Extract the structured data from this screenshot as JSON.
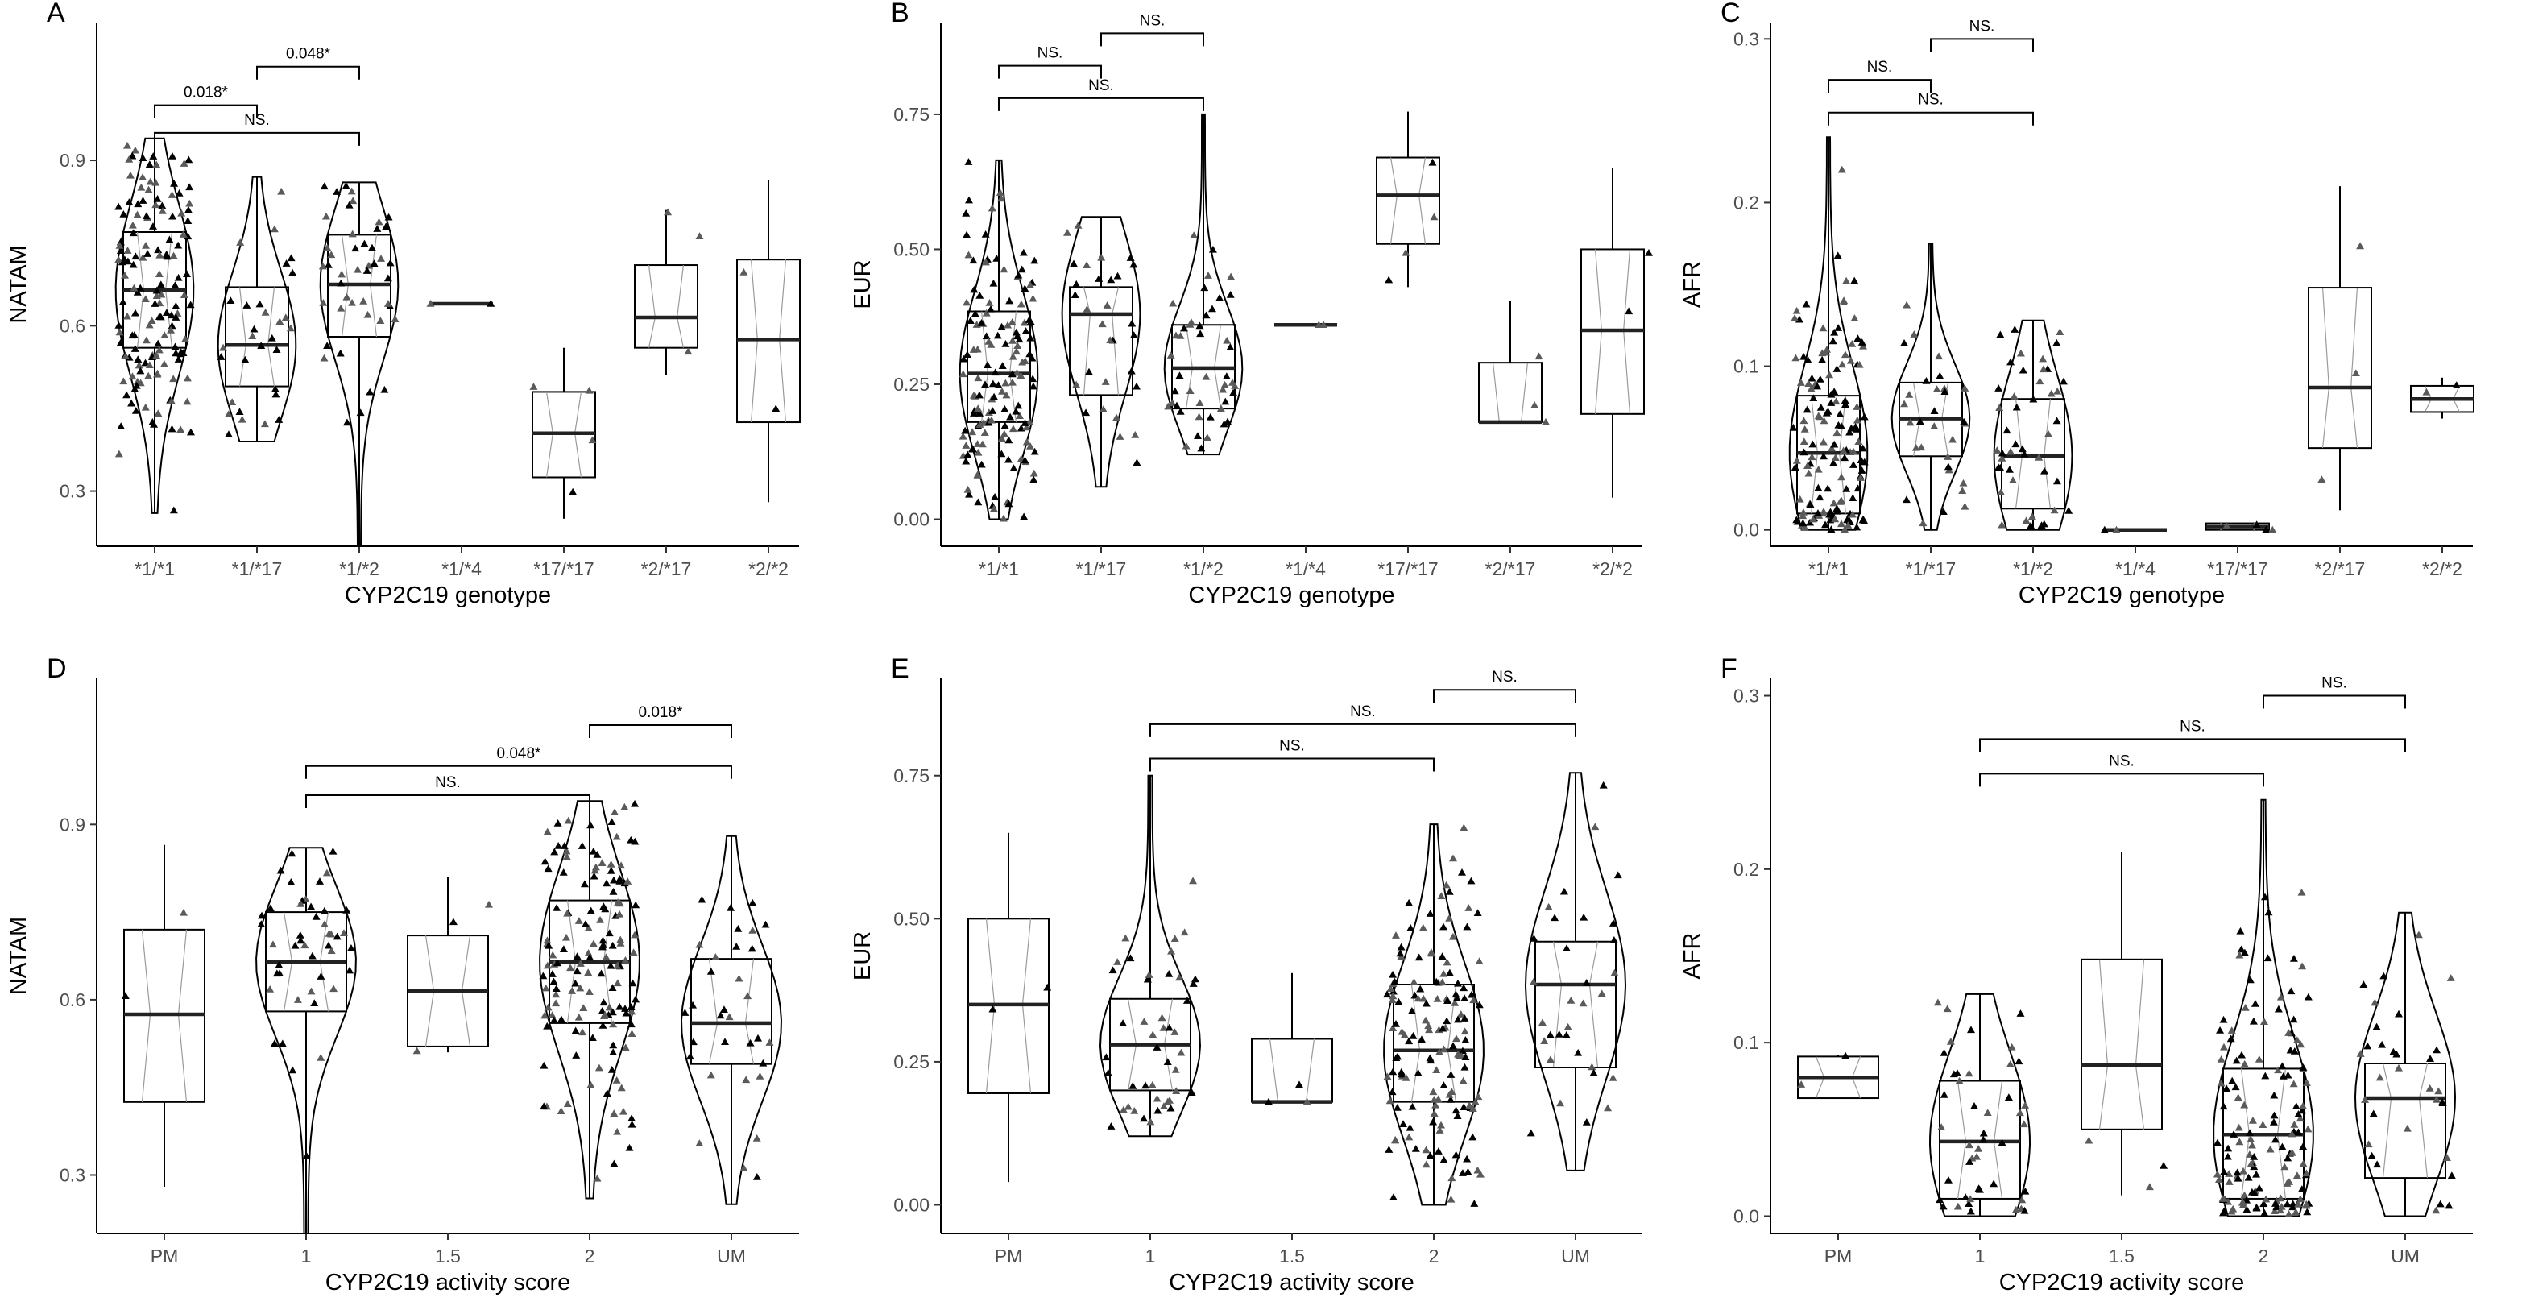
{
  "figure": {
    "colors": {
      "background": "#ffffff",
      "ink": "#000000",
      "tick_text": "#4d4d4d",
      "points_light": "#5a5a5a"
    }
  },
  "chart_data": [
    {
      "panel": "A",
      "type": "boxplot-violin",
      "ylabel": "NATAM",
      "xlabel": "CYP2C19 genotype",
      "ylim": [
        0.2,
        1.15
      ],
      "yticks": [
        0.3,
        0.6,
        0.9
      ],
      "ytick_labels": [
        "0.3",
        "0.6",
        "0.9"
      ],
      "categories": [
        "*1/*1",
        "*1/*17",
        "*1/*2",
        "*1/*4",
        "*17/*17",
        "*2/*17",
        "*2/*2"
      ],
      "boxes": [
        {
          "q1": 0.56,
          "median": 0.665,
          "q3": 0.77,
          "min": 0.26,
          "max": 0.94,
          "violin": true
        },
        {
          "q1": 0.49,
          "median": 0.565,
          "q3": 0.67,
          "min": 0.39,
          "max": 0.87,
          "violin": true
        },
        {
          "q1": 0.58,
          "median": 0.675,
          "q3": 0.765,
          "min": 0.2,
          "max": 0.86,
          "violin": true
        },
        {
          "q1": 0.64,
          "median": 0.64,
          "q3": 0.64,
          "min": 0.64,
          "max": 0.64,
          "violin": false
        },
        {
          "q1": 0.325,
          "median": 0.405,
          "q3": 0.48,
          "min": 0.25,
          "max": 0.56,
          "violin": false
        },
        {
          "q1": 0.56,
          "median": 0.615,
          "q3": 0.71,
          "min": 0.51,
          "max": 0.81,
          "violin": false
        },
        {
          "q1": 0.425,
          "median": 0.575,
          "q3": 0.72,
          "min": 0.28,
          "max": 0.865,
          "violin": false
        }
      ],
      "point_counts": [
        150,
        30,
        45,
        2,
        4,
        3,
        2
      ],
      "brackets": [
        {
          "from": 0,
          "to": 1,
          "y": 1.0,
          "label": "0.018*"
        },
        {
          "from": 1,
          "to": 2,
          "y": 1.07,
          "label": "0.048*"
        },
        {
          "from": 0,
          "to": 2,
          "y": 0.95,
          "label": "NS."
        }
      ]
    },
    {
      "panel": "B",
      "type": "boxplot-violin",
      "ylabel": "EUR",
      "xlabel": "CYP2C19 genotype",
      "ylim": [
        -0.05,
        0.92
      ],
      "yticks": [
        0.0,
        0.25,
        0.5,
        0.75
      ],
      "ytick_labels": [
        "0.00",
        "0.25",
        "0.50",
        "0.75"
      ],
      "categories": [
        "*1/*1",
        "*1/*17",
        "*1/*2",
        "*1/*4",
        "*17/*17",
        "*2/*17",
        "*2/*2"
      ],
      "boxes": [
        {
          "q1": 0.18,
          "median": 0.27,
          "q3": 0.385,
          "min": 0.0,
          "max": 0.665,
          "violin": true
        },
        {
          "q1": 0.23,
          "median": 0.38,
          "q3": 0.43,
          "min": 0.06,
          "max": 0.56,
          "violin": true
        },
        {
          "q1": 0.205,
          "median": 0.28,
          "q3": 0.36,
          "min": 0.12,
          "max": 0.75,
          "violin": true
        },
        {
          "q1": 0.36,
          "median": 0.36,
          "q3": 0.36,
          "min": 0.36,
          "max": 0.36,
          "violin": false
        },
        {
          "q1": 0.51,
          "median": 0.6,
          "q3": 0.67,
          "min": 0.43,
          "max": 0.755,
          "violin": false
        },
        {
          "q1": 0.18,
          "median": 0.18,
          "q3": 0.29,
          "min": 0.18,
          "max": 0.405,
          "violin": false
        },
        {
          "q1": 0.195,
          "median": 0.35,
          "q3": 0.5,
          "min": 0.04,
          "max": 0.65,
          "violin": false
        }
      ],
      "point_counts": [
        150,
        30,
        45,
        2,
        4,
        3,
        2
      ],
      "brackets": [
        {
          "from": 0,
          "to": 1,
          "y": 0.84,
          "label": "NS."
        },
        {
          "from": 1,
          "to": 2,
          "y": 0.9,
          "label": "NS."
        },
        {
          "from": 0,
          "to": 2,
          "y": 0.78,
          "label": "NS."
        }
      ]
    },
    {
      "panel": "C",
      "type": "boxplot-violin",
      "ylabel": "AFR",
      "xlabel": "CYP2C19 genotype",
      "ylim": [
        -0.01,
        0.31
      ],
      "yticks": [
        0.0,
        0.1,
        0.2,
        0.3
      ],
      "ytick_labels": [
        "0.0",
        "0.1",
        "0.2",
        "0.3"
      ],
      "categories": [
        "*1/*1",
        "*1/*17",
        "*1/*2",
        "*1/*4",
        "*17/*17",
        "*2/*17",
        "*2/*2"
      ],
      "boxes": [
        {
          "q1": 0.01,
          "median": 0.047,
          "q3": 0.082,
          "min": 0.0,
          "max": 0.24,
          "violin": true
        },
        {
          "q1": 0.045,
          "median": 0.068,
          "q3": 0.09,
          "min": 0.0,
          "max": 0.175,
          "violin": true
        },
        {
          "q1": 0.013,
          "median": 0.045,
          "q3": 0.08,
          "min": 0.0,
          "max": 0.128,
          "violin": true
        },
        {
          "q1": 0.0,
          "median": 0.0,
          "q3": 0.0,
          "min": 0.0,
          "max": 0.0,
          "violin": false
        },
        {
          "q1": 0.0,
          "median": 0.002,
          "q3": 0.004,
          "min": 0.0,
          "max": 0.004,
          "violin": false
        },
        {
          "q1": 0.05,
          "median": 0.087,
          "q3": 0.148,
          "min": 0.012,
          "max": 0.21,
          "violin": false
        },
        {
          "q1": 0.072,
          "median": 0.08,
          "q3": 0.088,
          "min": 0.068,
          "max": 0.093,
          "violin": false
        }
      ],
      "point_counts": [
        150,
        30,
        45,
        2,
        4,
        3,
        2
      ],
      "brackets": [
        {
          "from": 0,
          "to": 1,
          "y": 0.275,
          "label": "NS."
        },
        {
          "from": 1,
          "to": 2,
          "y": 0.3,
          "label": "NS."
        },
        {
          "from": 0,
          "to": 2,
          "y": 0.255,
          "label": "NS."
        }
      ]
    },
    {
      "panel": "D",
      "type": "boxplot-violin",
      "ylabel": "NATAM",
      "xlabel": "CYP2C19 activity score",
      "ylim": [
        0.2,
        1.15
      ],
      "yticks": [
        0.3,
        0.6,
        0.9
      ],
      "ytick_labels": [
        "0.3",
        "0.6",
        "0.9"
      ],
      "categories": [
        "PM",
        "1",
        "1.5",
        "2",
        "UM"
      ],
      "boxes": [
        {
          "q1": 0.425,
          "median": 0.575,
          "q3": 0.72,
          "min": 0.28,
          "max": 0.865,
          "violin": false
        },
        {
          "q1": 0.58,
          "median": 0.665,
          "q3": 0.75,
          "min": 0.2,
          "max": 0.86,
          "violin": true
        },
        {
          "q1": 0.52,
          "median": 0.615,
          "q3": 0.71,
          "min": 0.51,
          "max": 0.81,
          "violin": false
        },
        {
          "q1": 0.56,
          "median": 0.665,
          "q3": 0.77,
          "min": 0.26,
          "max": 0.94,
          "violin": true
        },
        {
          "q1": 0.49,
          "median": 0.56,
          "q3": 0.67,
          "min": 0.25,
          "max": 0.88,
          "violin": true
        }
      ],
      "point_counts": [
        2,
        45,
        3,
        150,
        32
      ],
      "brackets": [
        {
          "from": 3,
          "to": 4,
          "y": 1.07,
          "label": "0.018*"
        },
        {
          "from": 1,
          "to": 4,
          "y": 1.0,
          "label": "0.048*"
        },
        {
          "from": 1,
          "to": 3,
          "y": 0.95,
          "label": "NS."
        }
      ]
    },
    {
      "panel": "E",
      "type": "boxplot-violin",
      "ylabel": "EUR",
      "xlabel": "CYP2C19 activity score",
      "ylim": [
        -0.05,
        0.92
      ],
      "yticks": [
        0.0,
        0.25,
        0.5,
        0.75
      ],
      "ytick_labels": [
        "0.00",
        "0.25",
        "0.50",
        "0.75"
      ],
      "categories": [
        "PM",
        "1",
        "1.5",
        "2",
        "UM"
      ],
      "boxes": [
        {
          "q1": 0.195,
          "median": 0.35,
          "q3": 0.5,
          "min": 0.04,
          "max": 0.65,
          "violin": false
        },
        {
          "q1": 0.2,
          "median": 0.28,
          "q3": 0.36,
          "min": 0.12,
          "max": 0.75,
          "violin": true
        },
        {
          "q1": 0.18,
          "median": 0.18,
          "q3": 0.29,
          "min": 0.18,
          "max": 0.405,
          "violin": false
        },
        {
          "q1": 0.18,
          "median": 0.27,
          "q3": 0.385,
          "min": 0.0,
          "max": 0.665,
          "violin": true
        },
        {
          "q1": 0.24,
          "median": 0.385,
          "q3": 0.46,
          "min": 0.06,
          "max": 0.755,
          "violin": true
        }
      ],
      "point_counts": [
        2,
        45,
        3,
        150,
        32
      ],
      "brackets": [
        {
          "from": 3,
          "to": 4,
          "y": 0.9,
          "label": "NS."
        },
        {
          "from": 1,
          "to": 4,
          "y": 0.84,
          "label": "NS."
        },
        {
          "from": 1,
          "to": 3,
          "y": 0.78,
          "label": "NS."
        }
      ]
    },
    {
      "panel": "F",
      "type": "boxplot-violin",
      "ylabel": "AFR",
      "xlabel": "CYP2C19 activity score",
      "ylim": [
        -0.01,
        0.31
      ],
      "yticks": [
        0.0,
        0.1,
        0.2,
        0.3
      ],
      "ytick_labels": [
        "0.0",
        "0.1",
        "0.2",
        "0.3"
      ],
      "categories": [
        "PM",
        "1",
        "1.5",
        "2",
        "UM"
      ],
      "boxes": [
        {
          "q1": 0.068,
          "median": 0.08,
          "q3": 0.092,
          "min": 0.068,
          "max": 0.093,
          "violin": false
        },
        {
          "q1": 0.01,
          "median": 0.043,
          "q3": 0.078,
          "min": 0.0,
          "max": 0.128,
          "violin": true
        },
        {
          "q1": 0.05,
          "median": 0.087,
          "q3": 0.148,
          "min": 0.012,
          "max": 0.21,
          "violin": false
        },
        {
          "q1": 0.01,
          "median": 0.047,
          "q3": 0.085,
          "min": 0.0,
          "max": 0.24,
          "violin": true
        },
        {
          "q1": 0.022,
          "median": 0.068,
          "q3": 0.088,
          "min": 0.0,
          "max": 0.175,
          "violin": true
        }
      ],
      "point_counts": [
        2,
        45,
        3,
        150,
        32
      ],
      "brackets": [
        {
          "from": 3,
          "to": 4,
          "y": 0.3,
          "label": "NS."
        },
        {
          "from": 1,
          "to": 4,
          "y": 0.275,
          "label": "NS."
        },
        {
          "from": 1,
          "to": 3,
          "y": 0.255,
          "label": "NS."
        }
      ]
    }
  ]
}
